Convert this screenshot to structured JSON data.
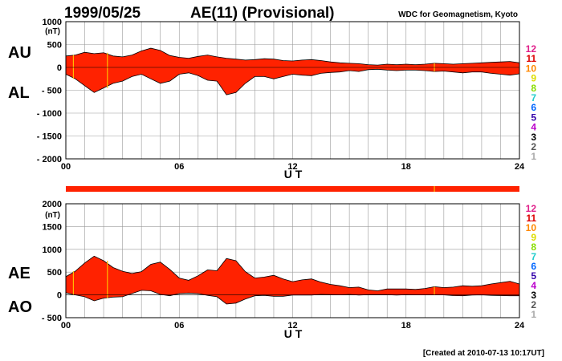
{
  "header": {
    "date": "1999/05/25",
    "title": "AE(11) (Provisional)",
    "source": "WDC for Geomagnetism, Kyoto"
  },
  "footer": {
    "created": "[Created at 2010-07-13 10:17UT]"
  },
  "colors": {
    "fill": "#ff2200",
    "grid": "#999999",
    "station_mark": "#ffbb00",
    "station_levels": {
      "12": "#e0208a",
      "11": "#dd0000",
      "10": "#ff8800",
      "9": "#dddd00",
      "8": "#88dd00",
      "7": "#22cccc",
      "6": "#0066ff",
      "5": "#3300aa",
      "4": "#bb00cc",
      "3": "#000000",
      "2": "#555555",
      "1": "#aaaaaa"
    }
  },
  "station_levels": [
    "12",
    "11",
    "10",
    "9",
    "8",
    "7",
    "6",
    "5",
    "4",
    "3",
    "2",
    "1"
  ],
  "chart_data": [
    {
      "type": "area",
      "panel": "AU/AL",
      "series_labels": [
        "AU",
        "AL"
      ],
      "unit_label": "(nT)",
      "xlabel": "U T",
      "xlim": [
        0,
        24
      ],
      "ylim": [
        -2000,
        1000
      ],
      "yticks": [
        "1000",
        "500",
        "0",
        "- 500",
        "- 1000",
        "- 1500",
        "- 2000"
      ],
      "ytick_values": [
        1000,
        500,
        0,
        -500,
        -1000,
        -1500,
        -2000
      ],
      "xticks": [
        "00",
        "06",
        "12",
        "18",
        "24"
      ],
      "xtick_values": [
        0,
        6,
        12,
        18,
        24
      ],
      "x": [
        0,
        0.5,
        1,
        1.5,
        2,
        2.5,
        3,
        3.5,
        4,
        4.5,
        5,
        5.5,
        6,
        6.5,
        7,
        7.5,
        8,
        8.5,
        9,
        9.5,
        10,
        10.5,
        11,
        11.5,
        12,
        12.5,
        13,
        13.5,
        14,
        14.5,
        15,
        15.5,
        16,
        16.5,
        17,
        17.5,
        18,
        18.5,
        19,
        19.5,
        20,
        20.5,
        21,
        21.5,
        22,
        22.5,
        23,
        23.5,
        24
      ],
      "upper": [
        250,
        270,
        330,
        300,
        320,
        250,
        230,
        270,
        360,
        420,
        370,
        260,
        220,
        200,
        240,
        270,
        230,
        200,
        180,
        160,
        170,
        190,
        180,
        150,
        140,
        160,
        170,
        150,
        120,
        100,
        90,
        80,
        60,
        50,
        70,
        60,
        70,
        60,
        70,
        90,
        80,
        70,
        80,
        90,
        100,
        110,
        120,
        130,
        100
      ],
      "lower": [
        -150,
        -250,
        -400,
        -550,
        -450,
        -350,
        -300,
        -200,
        -150,
        -250,
        -350,
        -300,
        -150,
        -120,
        -180,
        -280,
        -300,
        -600,
        -550,
        -350,
        -200,
        -200,
        -250,
        -200,
        -150,
        -170,
        -180,
        -130,
        -110,
        -100,
        -70,
        -90,
        -50,
        -40,
        -60,
        -70,
        -60,
        -60,
        -70,
        -90,
        -80,
        -100,
        -120,
        -100,
        -100,
        -130,
        -150,
        -170,
        -140
      ],
      "station_marks": [
        0.4,
        2.2,
        19.5
      ]
    },
    {
      "type": "area",
      "panel": "AE/AO",
      "series_labels": [
        "AE",
        "AO"
      ],
      "unit_label": "(nT)",
      "xlabel": "U T",
      "xlim": [
        0,
        24
      ],
      "ylim": [
        -500,
        2000
      ],
      "yticks": [
        "2000",
        "1500",
        "1000",
        "500",
        "0",
        "- 500"
      ],
      "ytick_values": [
        2000,
        1500,
        1000,
        500,
        0,
        -500
      ],
      "xticks": [
        "00",
        "06",
        "12",
        "18",
        "24"
      ],
      "xtick_values": [
        0,
        6,
        12,
        18,
        24
      ],
      "x": [
        0,
        0.5,
        1,
        1.5,
        2,
        2.5,
        3,
        3.5,
        4,
        4.5,
        5,
        5.5,
        6,
        6.5,
        7,
        7.5,
        8,
        8.5,
        9,
        9.5,
        10,
        10.5,
        11,
        11.5,
        12,
        12.5,
        13,
        13.5,
        14,
        14.5,
        15,
        15.5,
        16,
        16.5,
        17,
        17.5,
        18,
        18.5,
        19,
        19.5,
        20,
        20.5,
        21,
        21.5,
        22,
        22.5,
        23,
        23.5,
        24
      ],
      "upper": [
        400,
        520,
        700,
        850,
        750,
        600,
        520,
        470,
        510,
        670,
        720,
        560,
        370,
        320,
        420,
        550,
        530,
        800,
        750,
        510,
        370,
        390,
        430,
        350,
        290,
        330,
        350,
        280,
        230,
        200,
        160,
        170,
        110,
        90,
        130,
        130,
        130,
        120,
        140,
        180,
        160,
        170,
        200,
        190,
        200,
        240,
        270,
        300,
        240
      ],
      "lower": [
        50,
        0,
        -40,
        -130,
        -70,
        -50,
        -40,
        30,
        100,
        90,
        10,
        -20,
        30,
        40,
        30,
        -10,
        -40,
        -200,
        -180,
        -90,
        -20,
        -10,
        -30,
        -30,
        -5,
        -5,
        -5,
        10,
        5,
        0,
        10,
        -5,
        5,
        5,
        5,
        -5,
        5,
        0,
        0,
        0,
        0,
        -15,
        -20,
        -5,
        0,
        -10,
        -15,
        -20,
        -20
      ],
      "station_marks": [
        0.4,
        2.2,
        19.5
      ]
    }
  ]
}
